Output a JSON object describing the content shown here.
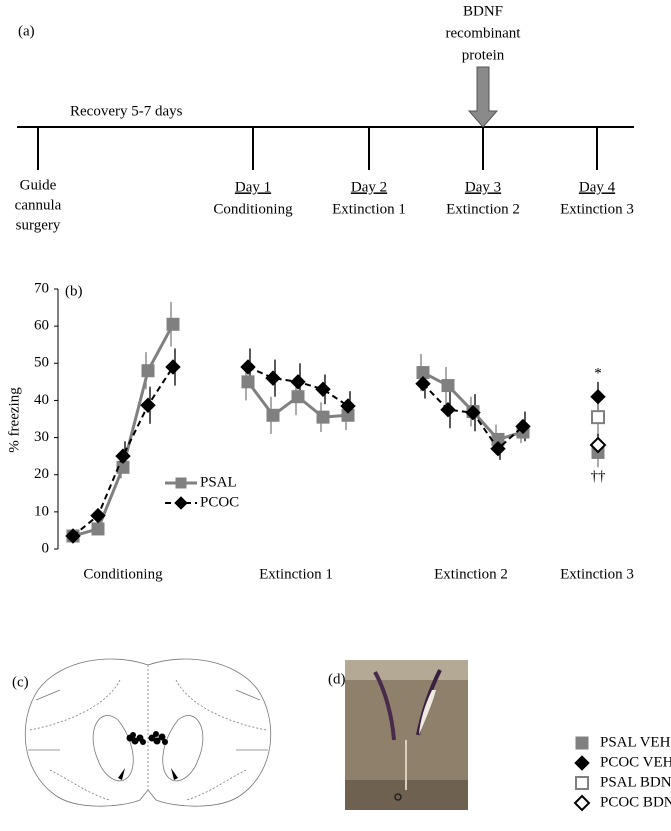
{
  "panel_a": {
    "label": "(a)",
    "recovery": "Recovery 5-7 days",
    "arrow_label": [
      "BDNF",
      "recombinant",
      "protein"
    ],
    "events": [
      {
        "lines": [
          "Guide",
          "cannula",
          "surgery"
        ]
      },
      {
        "day": "Day 1",
        "label": "Conditioning"
      },
      {
        "day": "Day 2",
        "label": "Extinction 1"
      },
      {
        "day": "Day 3",
        "label": "Extinction 2"
      },
      {
        "day": "Day 4",
        "label": "Extinction 3"
      }
    ]
  },
  "chart_data": {
    "type": "line",
    "label": "(b)",
    "ylabel": "% freezing",
    "ylim": [
      0,
      70
    ],
    "yticks": [
      0,
      10,
      20,
      30,
      40,
      50,
      60,
      70
    ],
    "groups": [
      "Conditioning",
      "Extinction 1",
      "Extinction 2",
      "Extinction 3"
    ],
    "legend": "center left",
    "series": [
      {
        "name": "PSAL",
        "color": "#808080",
        "marker": "square",
        "dashed": false,
        "values": [
          [
            3.5,
            5.4,
            22,
            48,
            60.5
          ],
          [
            45,
            36,
            41,
            35.5,
            36
          ],
          [
            47.5,
            44,
            37,
            29.5,
            31.5
          ]
        ],
        "errors": [
          [
            1,
            1,
            3,
            5,
            6
          ],
          [
            5,
            5,
            5,
            4,
            4
          ],
          [
            5,
            5,
            4,
            4,
            3
          ]
        ]
      },
      {
        "name": "PCOC",
        "color": "#000000",
        "marker": "diamond",
        "dashed": true,
        "values": [
          [
            3.5,
            9,
            25,
            38.7,
            49
          ],
          [
            49,
            46,
            45,
            43,
            38.5
          ],
          [
            44.5,
            37.5,
            36.7,
            27,
            33
          ]
        ],
        "errors": [
          [
            1,
            1,
            4,
            5,
            5
          ],
          [
            5,
            5,
            5,
            4,
            4
          ],
          [
            4,
            5,
            5,
            3,
            4
          ]
        ]
      }
    ],
    "ext3_series": [
      {
        "name": "PSAL VEH",
        "color": "#808080",
        "marker": "square",
        "filled": true,
        "values": [
          26
        ],
        "errors": [
          4
        ],
        "mark_below": "††"
      },
      {
        "name": "PCOC VEH",
        "color": "#000000",
        "marker": "diamond",
        "filled": true,
        "values": [
          41
        ],
        "errors": [
          4
        ],
        "mark_above": "*"
      },
      {
        "name": "PSAL BDNF",
        "color": "#808080",
        "marker": "square",
        "filled": false,
        "values": [
          35.5
        ],
        "errors": [
          5
        ]
      },
      {
        "name": "PCOC BDNF",
        "color": "#000000",
        "marker": "diamond",
        "filled": false,
        "values": [
          28
        ],
        "errors": [
          3
        ]
      }
    ]
  },
  "panel_c": {
    "label": "(c)"
  },
  "panel_d": {
    "label": "(d)"
  }
}
